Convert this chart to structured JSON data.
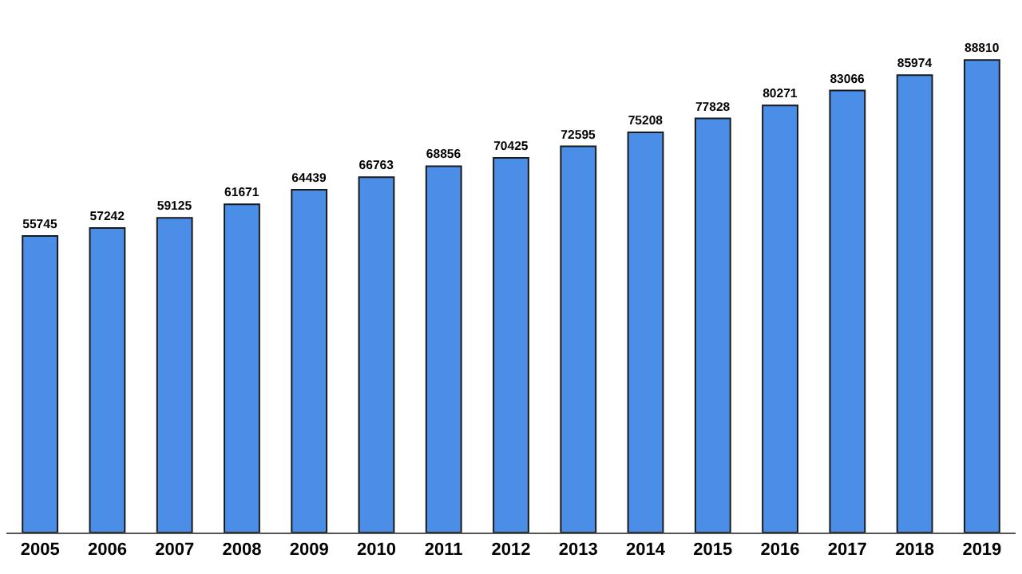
{
  "chart_data": {
    "type": "bar",
    "categories": [
      "2005",
      "2006",
      "2007",
      "2008",
      "2009",
      "2010",
      "2011",
      "2012",
      "2013",
      "2014",
      "2015",
      "2016",
      "2017",
      "2018",
      "2019"
    ],
    "values": [
      55745,
      57242,
      59125,
      61671,
      64439,
      66763,
      68856,
      70425,
      72595,
      75208,
      77828,
      80271,
      83066,
      85974,
      88810
    ],
    "color": "#4a8ee8",
    "data_labels": true
  }
}
